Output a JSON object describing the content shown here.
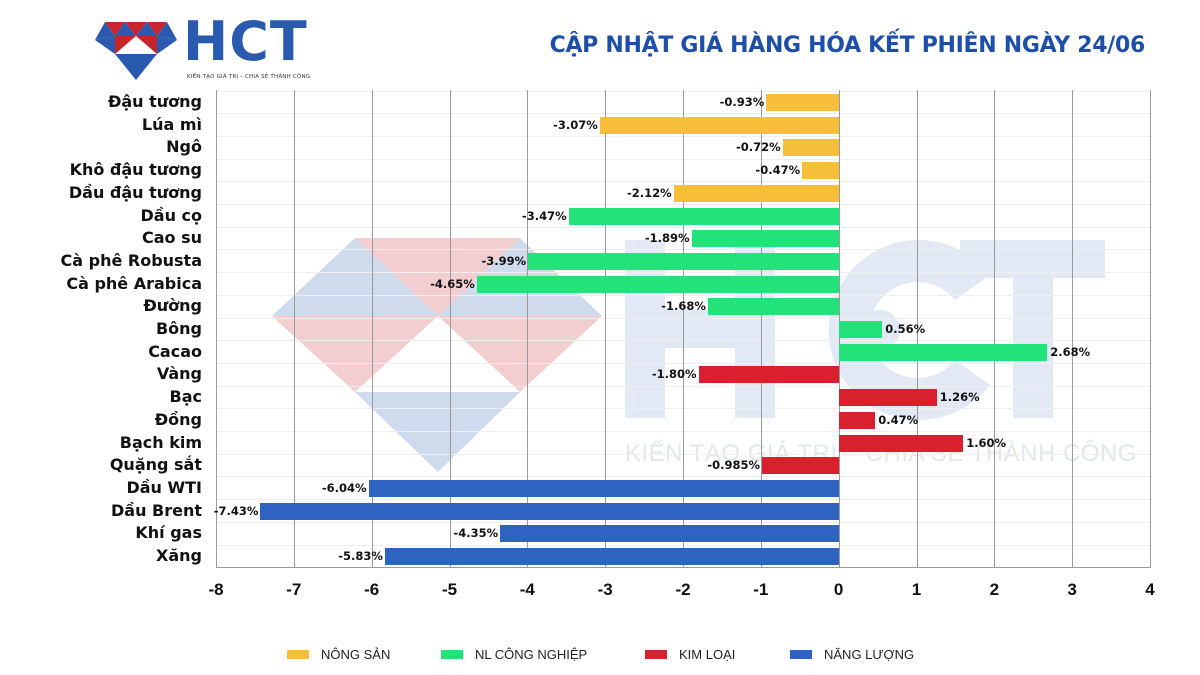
{
  "header": {
    "logo_text": "HCT",
    "logo_tagline": "KIẾN TẠO GIÁ TRỊ – CHIA SẺ THÀNH CÔNG",
    "title": "CẬP NHẬT GIÁ HÀNG HÓA KẾT PHIÊN NGÀY 24/06"
  },
  "watermark": {
    "text": "HCT",
    "tagline": "KIẾN TẠO GIÁ TRỊ – CHIA SẺ THÀNH CÔNG"
  },
  "colors": {
    "nong_san": "#f7be3a",
    "nl_cong_nghiep": "#22e27a",
    "kim_loai": "#d9202e",
    "nang_luong": "#2f63c2",
    "title": "#1e4fa8",
    "logo_blue": "#2a59b0",
    "logo_red": "#c8242e"
  },
  "legend": [
    {
      "label": "NÔNG SẢN",
      "color": "#f7be3a"
    },
    {
      "label": "NL CÔNG NGHIỆP",
      "color": "#22e27a"
    },
    {
      "label": "KIM LOẠI",
      "color": "#d9202e"
    },
    {
      "label": "NĂNG LƯỢNG",
      "color": "#2f63c2"
    }
  ],
  "chart_data": {
    "type": "bar",
    "orientation": "horizontal",
    "title": "CẬP NHẬT GIÁ HÀNG HÓA KẾT PHIÊN NGÀY 24/06",
    "xlabel": "",
    "ylabel": "",
    "xlim": [
      -8,
      4
    ],
    "x_ticks": [
      "-8",
      "-7",
      "-6",
      "-5",
      "-4",
      "-3",
      "-2",
      "-1",
      "0",
      "1",
      "2",
      "3",
      "4"
    ],
    "grid": "vertical",
    "legend_position": "bottom",
    "categories": [
      "Đậu tương",
      "Lúa mì",
      "Ngô",
      "Khô đậu tương",
      "Dầu đậu tương",
      "Dầu cọ",
      "Cao su",
      "Cà phê Robusta",
      "Cà phê Arabica",
      "Đường",
      "Bông",
      "Cacao",
      "Vàng",
      "Bạc",
      "Đồng",
      "Bạch kim",
      "Quặng sắt",
      "Dầu WTI",
      "Dầu Brent",
      "Khí gas",
      "Xăng"
    ],
    "values": [
      -0.93,
      -3.07,
      -0.72,
      -0.47,
      -2.12,
      -3.47,
      -1.89,
      -3.99,
      -4.65,
      -1.68,
      0.56,
      2.68,
      -1.8,
      1.26,
      0.47,
      1.6,
      -0.985,
      -6.04,
      -7.43,
      -4.35,
      -5.83
    ],
    "labels": [
      "-0.93%",
      "-3.07%",
      "-0.72%",
      "-0.47%",
      "-2.12%",
      "-3.47%",
      "-1.89%",
      "-3.99%",
      "-4.65%",
      "-1.68%",
      "0.56%",
      "2.68%",
      "-1.80%",
      "1.26%",
      "0.47%",
      "1.60%",
      "-0.985%",
      "-6.04%",
      "-7.43%",
      "-4.35%",
      "-5.83%"
    ],
    "groups": [
      "NÔNG SẢN",
      "NÔNG SẢN",
      "NÔNG SẢN",
      "NÔNG SẢN",
      "NÔNG SẢN",
      "NL CÔNG NGHIỆP",
      "NL CÔNG NGHIỆP",
      "NL CÔNG NGHIỆP",
      "NL CÔNG NGHIỆP",
      "NL CÔNG NGHIỆP",
      "NL CÔNG NGHIỆP",
      "NL CÔNG NGHIỆP",
      "KIM LOẠI",
      "KIM LOẠI",
      "KIM LOẠI",
      "KIM LOẠI",
      "KIM LOẠI",
      "NĂNG LƯỢNG",
      "NĂNG LƯỢNG",
      "NĂNG LƯỢNG",
      "NĂNG LƯỢNG"
    ],
    "series": [
      {
        "name": "NÔNG SẢN",
        "categories": [
          "Đậu tương",
          "Lúa mì",
          "Ngô",
          "Khô đậu tương",
          "Dầu đậu tương"
        ],
        "values": [
          -0.93,
          -3.07,
          -0.72,
          -0.47,
          -2.12
        ]
      },
      {
        "name": "NL CÔNG NGHIỆP",
        "categories": [
          "Dầu cọ",
          "Cao su",
          "Cà phê Robusta",
          "Cà phê Arabica",
          "Đường",
          "Bông",
          "Cacao"
        ],
        "values": [
          -3.47,
          -1.89,
          -3.99,
          -4.65,
          -1.68,
          0.56,
          2.68
        ]
      },
      {
        "name": "KIM LOẠI",
        "categories": [
          "Vàng",
          "Bạc",
          "Đồng",
          "Bạch kim",
          "Quặng sắt"
        ],
        "values": [
          -1.8,
          1.26,
          0.47,
          1.6,
          -0.985
        ]
      },
      {
        "name": "NĂNG LƯỢNG",
        "categories": [
          "Dầu WTI",
          "Dầu Brent",
          "Khí gas",
          "Xăng"
        ],
        "values": [
          -6.04,
          -7.43,
          -4.35,
          -5.83
        ]
      }
    ]
  }
}
